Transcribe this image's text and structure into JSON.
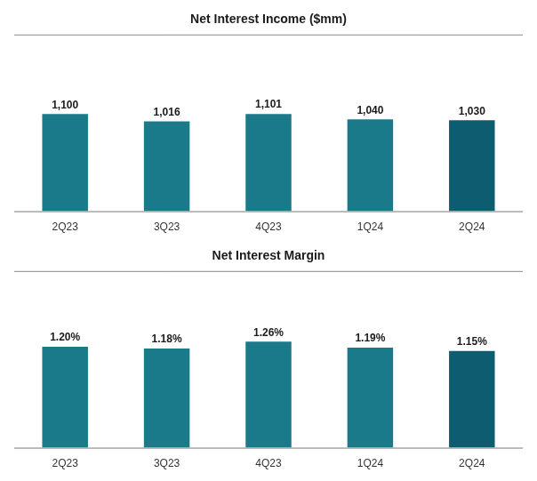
{
  "chart_data": [
    {
      "type": "bar",
      "title": "Net Interest Income ($mm)",
      "categories": [
        "2Q23",
        "3Q23",
        "4Q23",
        "1Q24",
        "2Q24"
      ],
      "values": [
        1100,
        1016,
        1101,
        1040,
        1030
      ],
      "value_labels": [
        "1,100",
        "1,016",
        "1,101",
        "1,040",
        "1,030"
      ],
      "colors": [
        "#1a7a8a",
        "#1a7a8a",
        "#1a7a8a",
        "#1a7a8a",
        "#0d5c70"
      ],
      "ylim": [
        0,
        2000
      ],
      "grid": false,
      "data_labels": true,
      "tick_labels": "x"
    },
    {
      "type": "bar",
      "title": "Net Interest Margin",
      "categories": [
        "2Q23",
        "3Q23",
        "4Q23",
        "1Q24",
        "2Q24"
      ],
      "values": [
        1.2,
        1.18,
        1.26,
        1.19,
        1.15
      ],
      "value_labels": [
        "1.20%",
        "1.18%",
        "1.26%",
        "1.19%",
        "1.15%"
      ],
      "colors": [
        "#1a7a8a",
        "#1a7a8a",
        "#1a7a8a",
        "#1a7a8a",
        "#0d5c70"
      ],
      "ylim": [
        0,
        2.1
      ],
      "grid": false,
      "data_labels": true,
      "tick_labels": "x"
    }
  ]
}
